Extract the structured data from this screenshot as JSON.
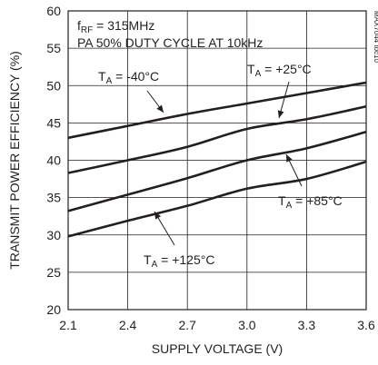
{
  "chart_data": {
    "type": "line",
    "xlabel": "SUPPLY VOLTAGE (V)",
    "ylabel": "TRANSMIT POWER EFFICIENCY (%)",
    "xlim": [
      2.1,
      3.6
    ],
    "ylim": [
      20,
      60
    ],
    "x_ticks": [
      "2.1",
      "2.4",
      "2.7",
      "3.0",
      "3.3",
      "3.6"
    ],
    "y_ticks": [
      "20",
      "25",
      "30",
      "35",
      "40",
      "45",
      "50",
      "55",
      "60"
    ],
    "grid": true,
    "annotations": {
      "line1_main": "f",
      "line1_sub": "RF",
      "line1_rest": " = 315MHz",
      "line2": "PA 50% DUTY CYCLE AT 10kHz",
      "chart_id": "MAX7044 toc10"
    },
    "series": [
      {
        "name_main": "T",
        "name_sub": "A",
        "name_rest": " = -40°C",
        "x": [
          2.1,
          2.4,
          2.7,
          3.0,
          3.3,
          3.6
        ],
        "y": [
          43.0,
          44.6,
          46.2,
          47.6,
          49.0,
          50.4
        ]
      },
      {
        "name_main": "T",
        "name_sub": "A",
        "name_rest": " = +25°C",
        "x": [
          2.1,
          2.4,
          2.7,
          3.0,
          3.3,
          3.6
        ],
        "y": [
          38.3,
          40.0,
          41.8,
          44.2,
          45.5,
          47.2
        ]
      },
      {
        "name_main": "T",
        "name_sub": "A",
        "name_rest": " = +85°C",
        "x": [
          2.1,
          2.4,
          2.7,
          3.0,
          3.3,
          3.6
        ],
        "y": [
          33.2,
          35.4,
          37.6,
          40.0,
          41.6,
          43.8
        ]
      },
      {
        "name_main": "T",
        "name_sub": "A",
        "name_rest": " = +125°C",
        "x": [
          2.1,
          2.4,
          2.7,
          3.0,
          3.3,
          3.6
        ],
        "y": [
          29.8,
          31.9,
          33.9,
          36.2,
          37.5,
          39.8
        ]
      }
    ]
  }
}
